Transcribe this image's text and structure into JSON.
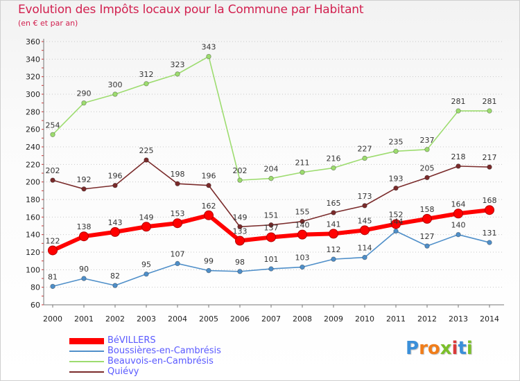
{
  "header": {
    "title": "Evolution des Impôts locaux pour la Commune par Habitant",
    "subtitle": "(en € et par an)"
  },
  "logo": {
    "text": "Proxiti",
    "letters": [
      "P",
      "r",
      "o",
      "x",
      "i",
      "t",
      "i"
    ],
    "colors": [
      "#3a8fd9",
      "#f07d1a",
      "#f07d1a",
      "#7bbf2a",
      "#d93a3a",
      "#3a8fd9",
      "#7bbf2a"
    ]
  },
  "chart_data": {
    "type": "line",
    "title": "Evolution des Impôts locaux pour la Commune par Habitant",
    "subtitle": "(en € et par an)",
    "xlabel": "",
    "ylabel": "",
    "x": [
      "2000",
      "2001",
      "2002",
      "2003",
      "2004",
      "2005",
      "2006",
      "2007",
      "2008",
      "2009",
      "2010",
      "2011",
      "2012",
      "2013",
      "2014"
    ],
    "ylim": [
      60,
      360
    ],
    "yticks": [
      60,
      80,
      100,
      120,
      140,
      160,
      180,
      200,
      220,
      240,
      260,
      280,
      300,
      320,
      340,
      360
    ],
    "grid": "horizontal dotted",
    "legend_position": "bottom-left",
    "series": [
      {
        "name": "BéVILLERS",
        "color": "#ff0000",
        "values": [
          122,
          138,
          143,
          149,
          153,
          162,
          133,
          137,
          140,
          141,
          145,
          152,
          158,
          164,
          168
        ]
      },
      {
        "name": "Boussières-en-Cambrésis",
        "color": "#4f8fc9",
        "values": [
          81,
          90,
          82,
          95,
          107,
          99,
          98,
          101,
          103,
          112,
          114,
          144,
          127,
          140,
          131
        ]
      },
      {
        "name": "Beauvois-en-Cambrésis",
        "color": "#9ddc6f",
        "values": [
          254,
          290,
          300,
          312,
          323,
          343,
          202,
          204,
          211,
          216,
          227,
          235,
          237,
          281,
          281
        ]
      },
      {
        "name": "Quiévy",
        "color": "#7a2b2b",
        "values": [
          202,
          192,
          196,
          225,
          198,
          196,
          149,
          151,
          155,
          165,
          173,
          193,
          205,
          218,
          217
        ]
      }
    ]
  }
}
